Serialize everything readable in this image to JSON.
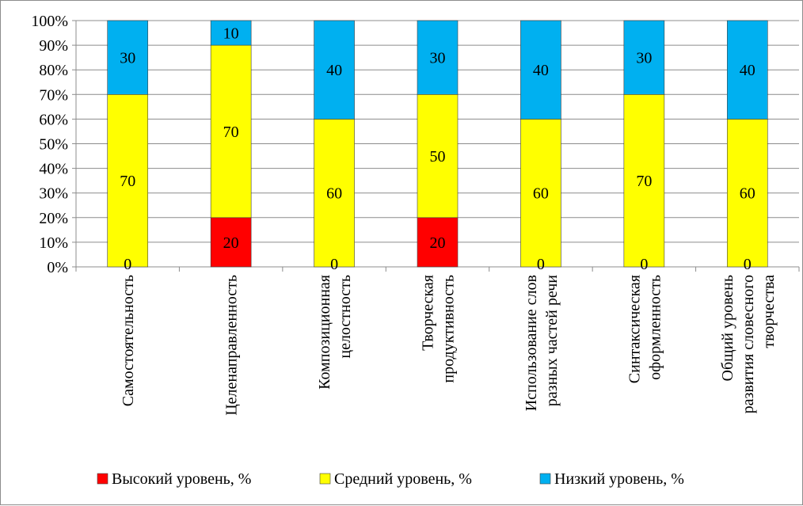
{
  "chart_data": {
    "type": "bar",
    "stacked": true,
    "percent_stacked": true,
    "categories": [
      [
        "Самостоятельность"
      ],
      [
        "Целенаправленность"
      ],
      [
        "Композиционная",
        "целостность"
      ],
      [
        "Творческая",
        "продуктивность"
      ],
      [
        "Использование слов",
        "разных частей речи"
      ],
      [
        "Синтаксическая",
        "оформленность"
      ],
      [
        "Общий уровень",
        "развития словесного",
        "творчества"
      ]
    ],
    "series": [
      {
        "name": "Высокий уровень, %",
        "color": "#ff0000",
        "values": [
          0,
          20,
          0,
          20,
          0,
          0,
          0
        ]
      },
      {
        "name": "Средний уровень, %",
        "color": "#ffff00",
        "values": [
          70,
          70,
          60,
          50,
          60,
          70,
          60
        ]
      },
      {
        "name": "Низкий уровень, %",
        "color": "#00b0f0",
        "values": [
          30,
          10,
          40,
          30,
          40,
          30,
          40
        ]
      }
    ],
    "ylim": [
      0,
      100
    ],
    "y_ticks": [
      "0%",
      "10%",
      "20%",
      "30%",
      "40%",
      "50%",
      "60%",
      "70%",
      "80%",
      "90%",
      "100%"
    ],
    "grid": true,
    "legend_position": "bottom"
  }
}
